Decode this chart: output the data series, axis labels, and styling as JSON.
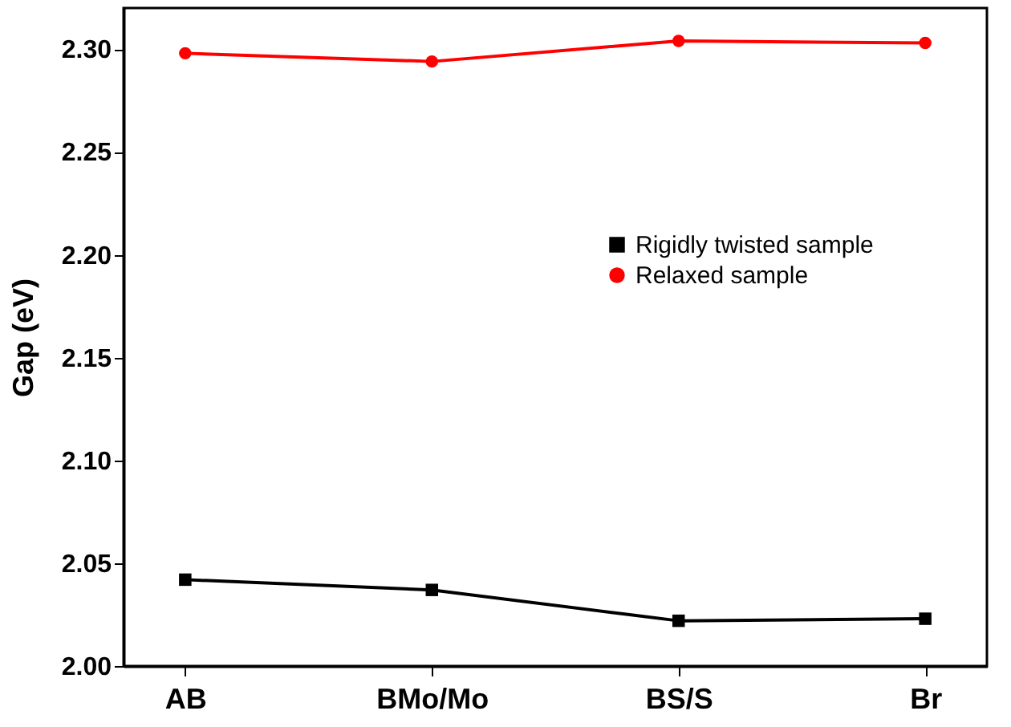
{
  "chart_data": {
    "type": "line",
    "ylabel": "Gap (eV)",
    "categories": [
      "AB",
      "BMo/Mo",
      "BS/S",
      "Br"
    ],
    "series": [
      {
        "name": "Rigidly twisted sample",
        "color": "#000000",
        "marker": "square",
        "values": [
          2.042,
          2.037,
          2.022,
          2.023
        ]
      },
      {
        "name": "Relaxed sample",
        "color": "#ff0000",
        "marker": "circle",
        "values": [
          2.298,
          2.294,
          2.304,
          2.303
        ]
      }
    ],
    "ylim": [
      2.0,
      2.32
    ],
    "yticks": [
      {
        "value": 2.0,
        "label": "2.00"
      },
      2.05,
      {
        "value": 2.1,
        "label": "2.10"
      },
      2.15,
      {
        "value": 2.2,
        "label": "2.20"
      },
      2.25,
      {
        "value": 2.3,
        "label": "2.30"
      }
    ],
    "grid": false,
    "legend": "right",
    "line_style": "solid"
  }
}
